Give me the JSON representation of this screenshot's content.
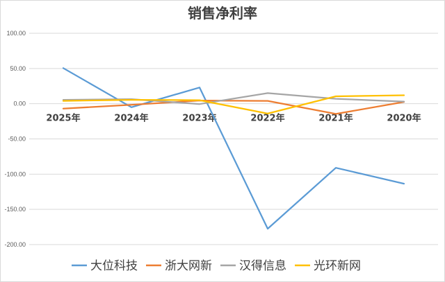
{
  "chart_data": {
    "type": "line",
    "title": "销售净利率",
    "categories": [
      "2025年",
      "2024年",
      "2023年",
      "2022年",
      "2021年",
      "2020年"
    ],
    "ylim": [
      -200,
      100
    ],
    "yticks": [
      "100.00",
      "50.00",
      "0.00",
      "-50.00",
      "-100.00",
      "-150.00",
      "-200.00"
    ],
    "grid": true,
    "legend": "bottom",
    "series": [
      {
        "name": "大位科技",
        "color": "#5b9bd5",
        "values": [
          50.5,
          -5.0,
          23.0,
          -177.5,
          -91.0,
          -113.5
        ]
      },
      {
        "name": "浙大网新",
        "color": "#ed7d31",
        "values": [
          -7.0,
          -1.5,
          4.5,
          4.0,
          -14.5,
          2.5
        ]
      },
      {
        "name": "汉得信息",
        "color": "#a5a5a5",
        "values": [
          5.5,
          6.5,
          -0.5,
          15.0,
          7.0,
          3.0
        ]
      },
      {
        "name": "光环新网",
        "color": "#ffc000",
        "values": [
          4.0,
          5.5,
          5.0,
          -14.0,
          10.5,
          12.0
        ]
      }
    ]
  }
}
